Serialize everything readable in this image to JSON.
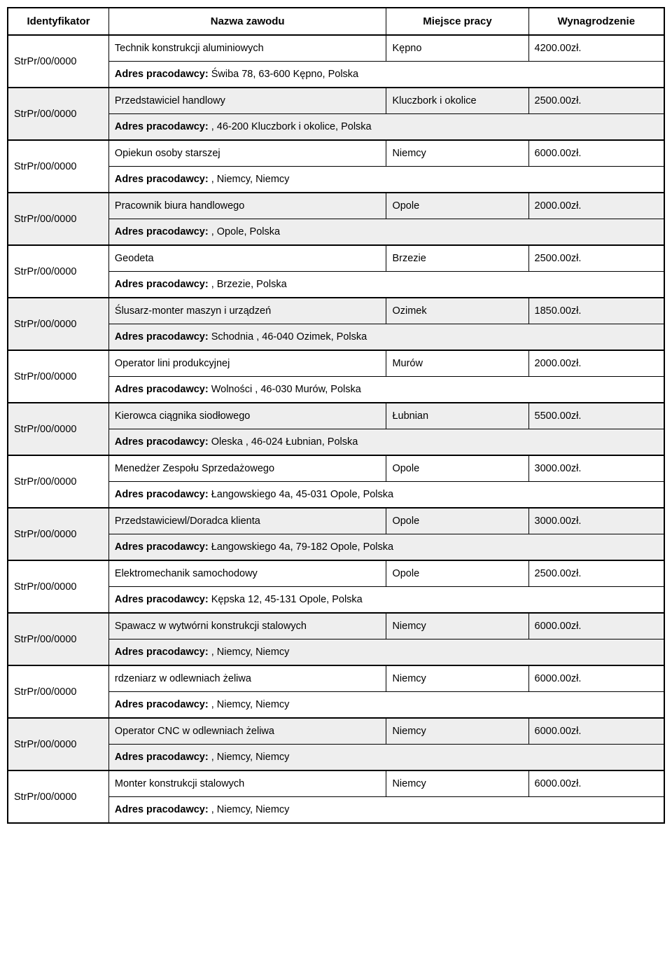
{
  "headers": {
    "id": "Identyfikator",
    "job": "Nazwa zawodu",
    "place": "Miejsce pracy",
    "wage": "Wynagrodzenie"
  },
  "addr_label": "Adres pracodawcy:",
  "rows": [
    {
      "id": "StrPr/00/0000",
      "job": "Technik konstrukcji aluminiowych",
      "place": "Kępno",
      "wage": "4200.00zł.",
      "addr": " Świba 78, 63-600 Kępno, Polska",
      "shade": false
    },
    {
      "id": "StrPr/00/0000",
      "job": "Przedstawiciel handlowy",
      "place": "Kluczbork i okolice",
      "wage": "2500.00zł.",
      "addr": " , 46-200 Kluczbork i okolice, Polska",
      "shade": true
    },
    {
      "id": "StrPr/00/0000",
      "job": "Opiekun osoby starszej",
      "place": "Niemcy",
      "wage": "6000.00zł.",
      "addr": " , Niemcy, Niemcy",
      "shade": false
    },
    {
      "id": "StrPr/00/0000",
      "job": "Pracownik biura handlowego",
      "place": "Opole",
      "wage": "2000.00zł.",
      "addr": " , Opole, Polska",
      "shade": true
    },
    {
      "id": "StrPr/00/0000",
      "job": "Geodeta",
      "place": "Brzezie",
      "wage": "2500.00zł.",
      "addr": " , Brzezie, Polska",
      "shade": false
    },
    {
      "id": "StrPr/00/0000",
      "job": "Ślusarz-monter maszyn i urządzeń",
      "place": "Ozimek",
      "wage": "1850.00zł.",
      "addr": " Schodnia , 46-040 Ozimek, Polska",
      "shade": true
    },
    {
      "id": "StrPr/00/0000",
      "job": "Operator lini produkcyjnej",
      "place": "Murów",
      "wage": "2000.00zł.",
      "addr": " Wolności , 46-030 Murów, Polska",
      "shade": false
    },
    {
      "id": "StrPr/00/0000",
      "job": "Kierowca ciągnika siodłowego",
      "place": "Łubnian",
      "wage": "5500.00zł.",
      "addr": " Oleska , 46-024 Łubnian, Polska",
      "shade": true
    },
    {
      "id": "StrPr/00/0000",
      "job": "Menedżer Zespołu Sprzedażowego",
      "place": "Opole",
      "wage": "3000.00zł.",
      "addr": " Łangowskiego 4a, 45-031 Opole, Polska",
      "shade": false
    },
    {
      "id": "StrPr/00/0000",
      "job": "Przedstawiciewl/Doradca klienta",
      "place": "Opole",
      "wage": "3000.00zł.",
      "addr": " Łangowskiego 4a, 79-182 Opole, Polska",
      "shade": true
    },
    {
      "id": "StrPr/00/0000",
      "job": "Elektromechanik samochodowy",
      "place": "Opole",
      "wage": "2500.00zł.",
      "addr": " Kępska 12, 45-131 Opole, Polska",
      "shade": false
    },
    {
      "id": "StrPr/00/0000",
      "job": "Spawacz w wytwórni konstrukcji stalowych",
      "place": "Niemcy",
      "wage": "6000.00zł.",
      "addr": " , Niemcy, Niemcy",
      "shade": true
    },
    {
      "id": "StrPr/00/0000",
      "job": "rdzeniarz w odlewniach żeliwa",
      "place": "Niemcy",
      "wage": "6000.00zł.",
      "addr": " , Niemcy, Niemcy",
      "shade": false
    },
    {
      "id": "StrPr/00/0000",
      "job": "Operator CNC w odlewniach żeliwa",
      "place": "Niemcy",
      "wage": "6000.00zł.",
      "addr": " , Niemcy, Niemcy",
      "shade": true
    },
    {
      "id": "StrPr/00/0000",
      "job": "Monter konstrukcji stalowych",
      "place": "Niemcy",
      "wage": "6000.00zł.",
      "addr": " , Niemcy, Niemcy",
      "shade": false
    }
  ]
}
